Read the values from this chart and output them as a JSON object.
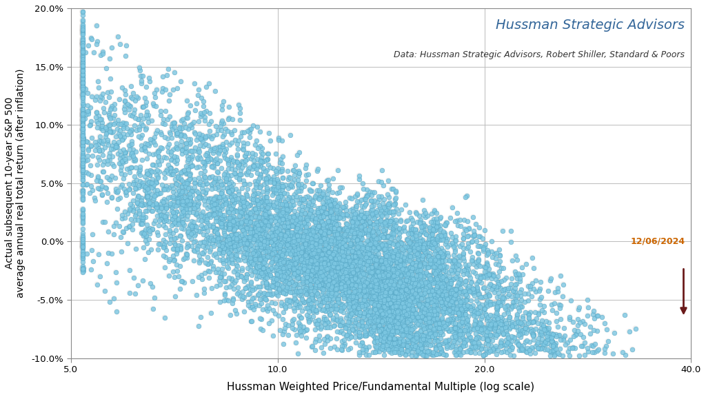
{
  "title": "Hussman Strategic Advisors",
  "subtitle": "Data: Hussman Strategic Advisors, Robert Shiller, Standard & Poors",
  "xlabel": "Hussman Weighted Price/Fundamental Multiple (log scale)",
  "ylabel": "Actual subsequent 10-year S&P 500\naverage annual real total return (after inflation)",
  "xmin": 5.0,
  "xmax": 40.0,
  "ymin": -0.1,
  "ymax": 0.2,
  "xticks": [
    5.0,
    10.0,
    20.0,
    40.0
  ],
  "yticks": [
    -0.1,
    -0.05,
    0.0,
    0.05,
    0.1,
    0.15,
    0.2
  ],
  "dot_color": "#7EC8E3",
  "dot_edge_color": "#5AAAC8",
  "dot_size": 22,
  "dot_alpha": 0.8,
  "annotation_text": "12/06/2024",
  "arrow_color": "#6B1A1A",
  "title_color": "#336699",
  "title_fontsize": 14,
  "subtitle_fontsize": 9,
  "annotation_color": "#CC6600",
  "seed": 42,
  "background_color": "#FFFFFF",
  "grid_color": "#BBBBBB"
}
